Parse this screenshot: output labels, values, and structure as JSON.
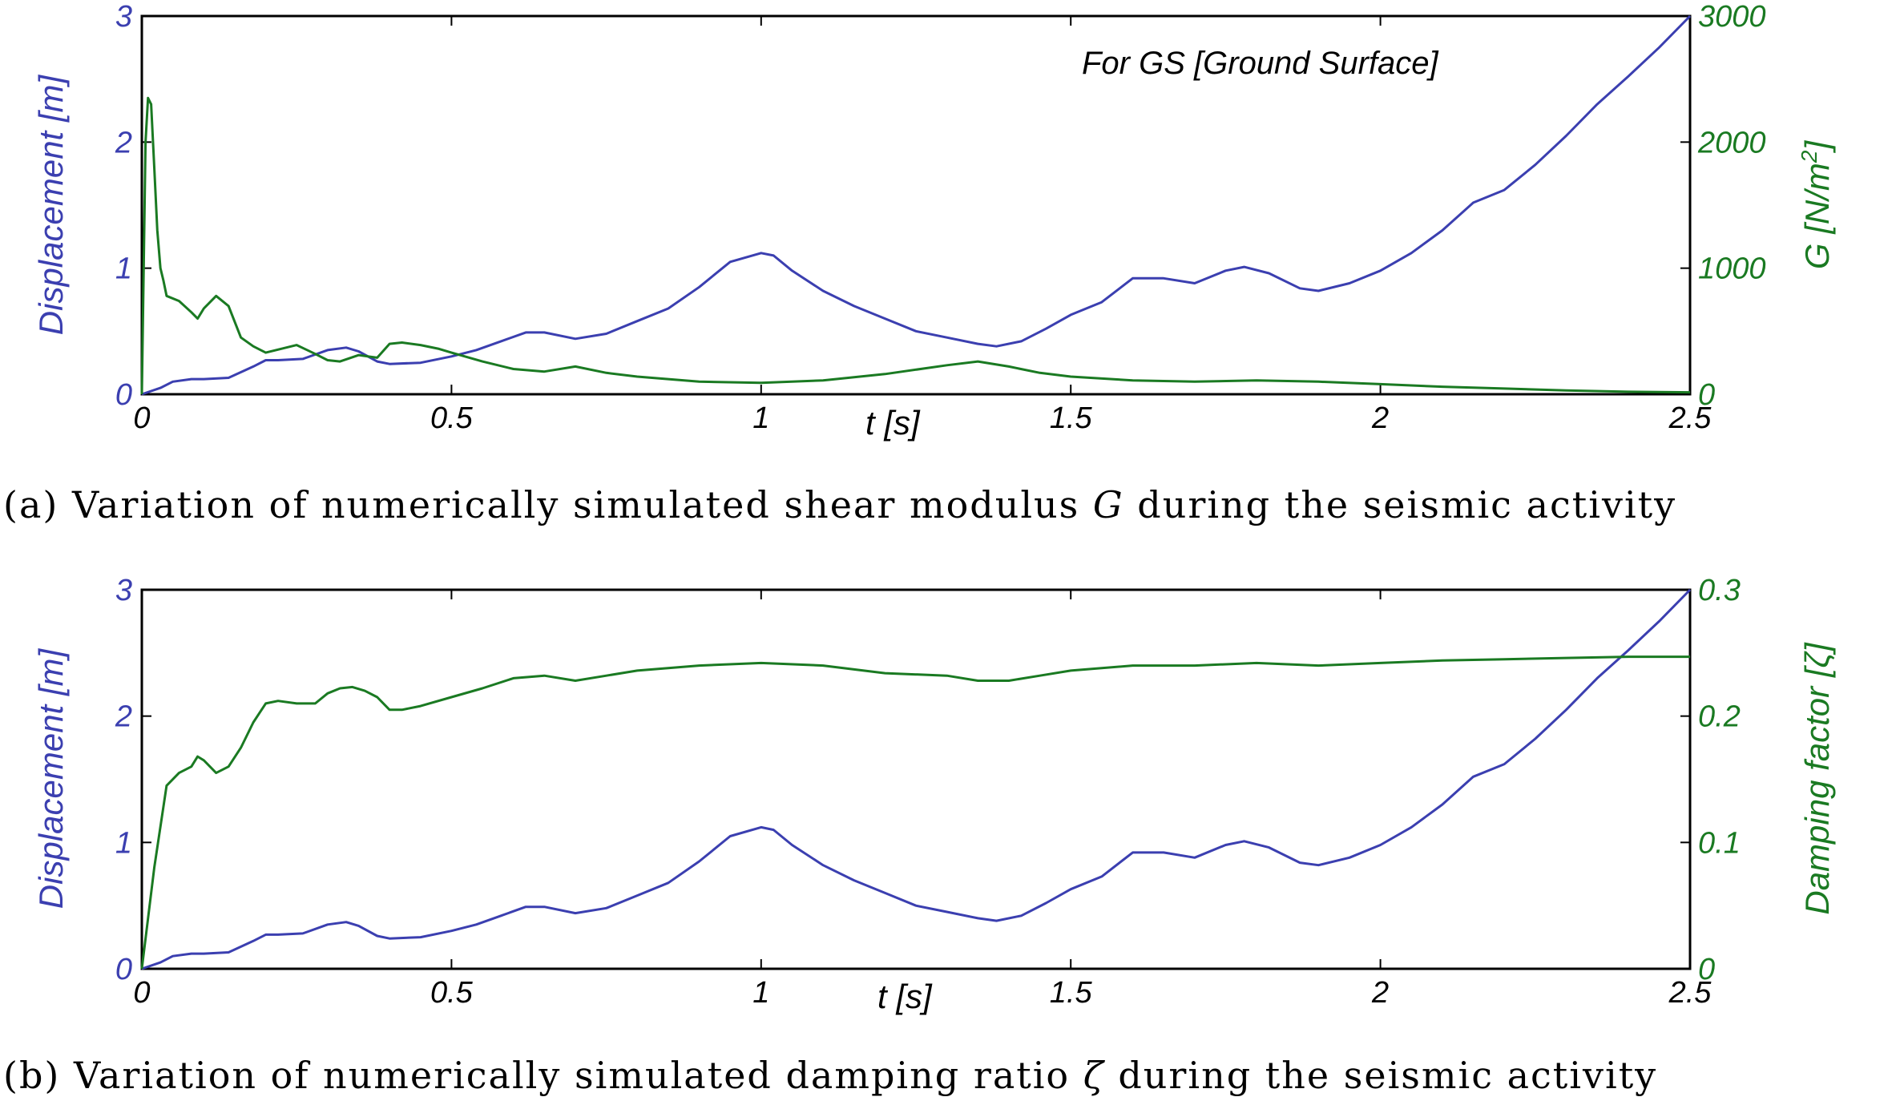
{
  "colors": {
    "displacement": "#3b3fb0",
    "secondary": "#1a7a22",
    "axis": "#000000"
  },
  "chart_data": [
    {
      "type": "line",
      "xlabel": "t [s]",
      "ylabel_left": "Displacement [m]",
      "ylabel_right_prefix": "G [N/m",
      "ylabel_right_sup": "2",
      "ylabel_right_suffix": "]",
      "xlim": [
        0,
        2.5
      ],
      "ylim_left": [
        0,
        3
      ],
      "ylim_right": [
        0,
        3000
      ],
      "xticks": [
        "0",
        "0.5",
        "1",
        "1.5",
        "2",
        "2.5"
      ],
      "yticks_left": [
        "0",
        "1",
        "2",
        "3"
      ],
      "yticks_right": [
        "0",
        "1000",
        "2000",
        "3000"
      ],
      "annotation": "For GS [Ground Surface]",
      "caption_prefix": "(a) Variation of numerically simulated shear modulus ",
      "caption_symbol": "G",
      "caption_suffix": " during the seismic activity",
      "series": [
        {
          "name": "Displacement",
          "axis": "left",
          "x": [
            0,
            0.03,
            0.05,
            0.08,
            0.1,
            0.14,
            0.18,
            0.2,
            0.22,
            0.26,
            0.3,
            0.33,
            0.35,
            0.38,
            0.4,
            0.45,
            0.5,
            0.54,
            0.58,
            0.62,
            0.65,
            0.7,
            0.75,
            0.8,
            0.85,
            0.9,
            0.95,
            1.0,
            1.02,
            1.05,
            1.1,
            1.15,
            1.2,
            1.25,
            1.3,
            1.35,
            1.38,
            1.42,
            1.46,
            1.5,
            1.55,
            1.6,
            1.65,
            1.7,
            1.75,
            1.78,
            1.82,
            1.87,
            1.9,
            1.95,
            2.0,
            2.05,
            2.1,
            2.15,
            2.2,
            2.25,
            2.3,
            2.35,
            2.4,
            2.45,
            2.5
          ],
          "values": [
            0,
            0.05,
            0.1,
            0.12,
            0.12,
            0.13,
            0.22,
            0.27,
            0.27,
            0.28,
            0.35,
            0.37,
            0.34,
            0.26,
            0.24,
            0.25,
            0.3,
            0.35,
            0.42,
            0.49,
            0.49,
            0.44,
            0.48,
            0.58,
            0.68,
            0.85,
            1.05,
            1.12,
            1.1,
            0.98,
            0.82,
            0.7,
            0.6,
            0.5,
            0.45,
            0.4,
            0.38,
            0.42,
            0.52,
            0.63,
            0.73,
            0.92,
            0.92,
            0.88,
            0.98,
            1.01,
            0.96,
            0.84,
            0.82,
            0.88,
            0.98,
            1.12,
            1.3,
            1.52,
            1.62,
            1.82,
            2.05,
            2.3,
            2.52,
            2.75,
            3.0
          ]
        },
        {
          "name": "G",
          "axis": "right",
          "x": [
            0,
            0.003,
            0.006,
            0.01,
            0.015,
            0.02,
            0.025,
            0.03,
            0.035,
            0.04,
            0.06,
            0.08,
            0.09,
            0.1,
            0.12,
            0.14,
            0.16,
            0.18,
            0.2,
            0.25,
            0.28,
            0.3,
            0.32,
            0.35,
            0.38,
            0.4,
            0.42,
            0.45,
            0.48,
            0.5,
            0.55,
            0.6,
            0.65,
            0.7,
            0.75,
            0.8,
            0.9,
            1.0,
            1.1,
            1.2,
            1.3,
            1.35,
            1.4,
            1.45,
            1.5,
            1.6,
            1.7,
            1.8,
            1.9,
            2.0,
            2.1,
            2.2,
            2.3,
            2.4,
            2.5
          ],
          "values": [
            0,
            1000,
            2000,
            2350,
            2300,
            1800,
            1300,
            1000,
            900,
            780,
            740,
            650,
            600,
            680,
            780,
            700,
            450,
            380,
            330,
            390,
            320,
            270,
            260,
            310,
            290,
            400,
            410,
            390,
            360,
            330,
            260,
            200,
            180,
            220,
            170,
            140,
            100,
            90,
            110,
            160,
            230,
            260,
            220,
            170,
            140,
            110,
            100,
            110,
            100,
            80,
            60,
            45,
            30,
            20,
            15
          ]
        }
      ]
    },
    {
      "type": "line",
      "xlabel": "t [s]",
      "ylabel_left": "Displacement [m]",
      "ylabel_right_prefix": "Damping factor [",
      "ylabel_right_sup": "",
      "ylabel_right_suffix": "ζ]",
      "xlim": [
        0,
        2.5
      ],
      "ylim_left": [
        0,
        3
      ],
      "ylim_right": [
        0,
        0.3
      ],
      "xticks": [
        "0",
        "0.5",
        "1",
        "1.5",
        "2",
        "2.5"
      ],
      "yticks_left": [
        "0",
        "1",
        "2",
        "3"
      ],
      "yticks_right": [
        "0",
        "0.1",
        "0.2",
        "0.3"
      ],
      "caption_prefix": "(b) Variation of numerically simulated damping ratio ",
      "caption_symbol": "ζ",
      "caption_suffix": " during the seismic activity",
      "series": [
        {
          "name": "Displacement",
          "axis": "left",
          "x": [
            0,
            0.03,
            0.05,
            0.08,
            0.1,
            0.14,
            0.18,
            0.2,
            0.22,
            0.26,
            0.3,
            0.33,
            0.35,
            0.38,
            0.4,
            0.45,
            0.5,
            0.54,
            0.58,
            0.62,
            0.65,
            0.7,
            0.75,
            0.8,
            0.85,
            0.9,
            0.95,
            1.0,
            1.02,
            1.05,
            1.1,
            1.15,
            1.2,
            1.25,
            1.3,
            1.35,
            1.38,
            1.42,
            1.46,
            1.5,
            1.55,
            1.6,
            1.65,
            1.7,
            1.75,
            1.78,
            1.82,
            1.87,
            1.9,
            1.95,
            2.0,
            2.05,
            2.1,
            2.15,
            2.2,
            2.25,
            2.3,
            2.35,
            2.4,
            2.45,
            2.5
          ],
          "values": [
            0,
            0.05,
            0.1,
            0.12,
            0.12,
            0.13,
            0.22,
            0.27,
            0.27,
            0.28,
            0.35,
            0.37,
            0.34,
            0.26,
            0.24,
            0.25,
            0.3,
            0.35,
            0.42,
            0.49,
            0.49,
            0.44,
            0.48,
            0.58,
            0.68,
            0.85,
            1.05,
            1.12,
            1.1,
            0.98,
            0.82,
            0.7,
            0.6,
            0.5,
            0.45,
            0.4,
            0.38,
            0.42,
            0.52,
            0.63,
            0.73,
            0.92,
            0.92,
            0.88,
            0.98,
            1.01,
            0.96,
            0.84,
            0.82,
            0.88,
            0.98,
            1.12,
            1.3,
            1.52,
            1.62,
            1.82,
            2.05,
            2.3,
            2.52,
            2.75,
            3.0
          ]
        },
        {
          "name": "Damping factor",
          "axis": "right",
          "x": [
            0,
            0.02,
            0.04,
            0.06,
            0.08,
            0.09,
            0.1,
            0.12,
            0.14,
            0.16,
            0.18,
            0.2,
            0.22,
            0.25,
            0.28,
            0.3,
            0.32,
            0.34,
            0.36,
            0.38,
            0.4,
            0.42,
            0.45,
            0.5,
            0.55,
            0.6,
            0.65,
            0.7,
            0.75,
            0.8,
            0.9,
            1.0,
            1.1,
            1.2,
            1.3,
            1.35,
            1.4,
            1.45,
            1.5,
            1.6,
            1.7,
            1.8,
            1.9,
            2.0,
            2.1,
            2.2,
            2.3,
            2.4,
            2.5
          ],
          "values": [
            0,
            0.08,
            0.145,
            0.155,
            0.16,
            0.168,
            0.165,
            0.155,
            0.16,
            0.175,
            0.195,
            0.21,
            0.212,
            0.21,
            0.21,
            0.218,
            0.222,
            0.223,
            0.22,
            0.215,
            0.205,
            0.205,
            0.208,
            0.215,
            0.222,
            0.23,
            0.232,
            0.228,
            0.232,
            0.236,
            0.24,
            0.242,
            0.24,
            0.234,
            0.232,
            0.228,
            0.228,
            0.232,
            0.236,
            0.24,
            0.24,
            0.242,
            0.24,
            0.242,
            0.244,
            0.245,
            0.246,
            0.247,
            0.247
          ]
        }
      ]
    }
  ]
}
